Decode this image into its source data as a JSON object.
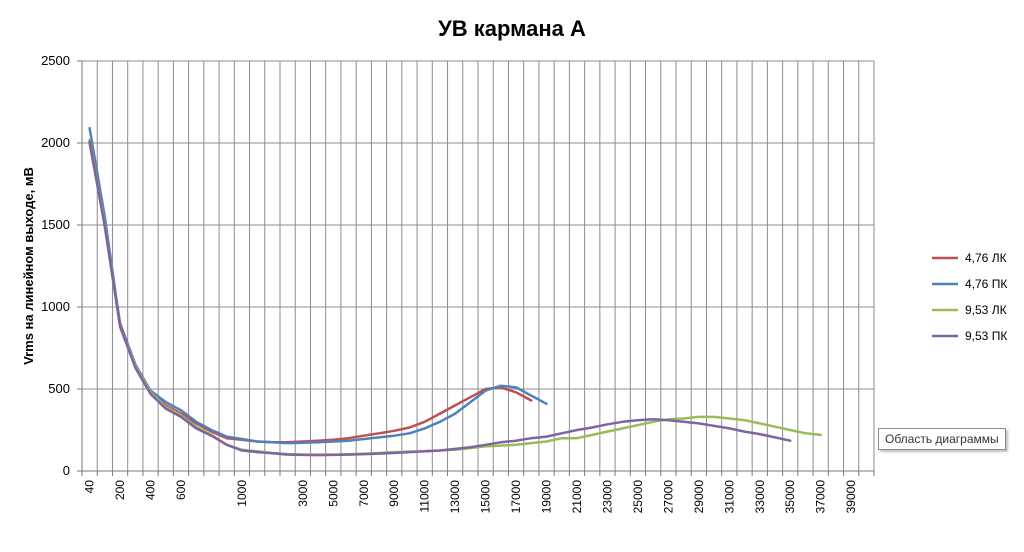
{
  "tooltip": "Область диаграммы",
  "chart_data": {
    "type": "line",
    "title": "УВ кармана А",
    "xlabel": "",
    "ylabel": "Vrms на линейном выходе, мВ",
    "ylim": [
      0,
      2500
    ],
    "y_ticks": [
      0,
      500,
      1000,
      1500,
      2000,
      2500
    ],
    "grid": true,
    "legend_position": "right",
    "x_tick_labels": [
      "40",
      "200",
      "400",
      "600",
      "1000",
      "3000",
      "5000",
      "7000",
      "9000",
      "11000",
      "13000",
      "15000",
      "17000",
      "19000",
      "21000",
      "23000",
      "25000",
      "27000",
      "29000",
      "31000",
      "33000",
      "35000",
      "37000",
      "39000"
    ],
    "x": [
      "40",
      "100",
      "200",
      "300",
      "400",
      "500",
      "600",
      "700",
      "800",
      "900",
      "1000",
      "1500",
      "2000",
      "2500",
      "3000",
      "4000",
      "5000",
      "6000",
      "7000",
      "8000",
      "9000",
      "10000",
      "11000",
      "12000",
      "13000",
      "14000",
      "15000",
      "16000",
      "17000",
      "18000",
      "19000",
      "20000",
      "21000",
      "22000",
      "23000",
      "24000",
      "25000",
      "26000",
      "27000",
      "28000",
      "29000",
      "30000",
      "31000",
      "32000",
      "33000",
      "34000",
      "35000",
      "36000",
      "37000",
      "38000",
      "39000",
      "40000"
    ],
    "series": [
      {
        "name": "4,76 ЛК",
        "color": "#c0504d",
        "values": [
          2000,
          1500,
          900,
          650,
          480,
          400,
          350,
          290,
          240,
          200,
          190,
          180,
          175,
          175,
          180,
          185,
          190,
          200,
          215,
          230,
          245,
          265,
          300,
          350,
          400,
          450,
          500,
          510,
          480,
          430,
          null,
          null,
          null,
          null,
          null,
          null,
          null,
          null,
          null,
          null,
          null,
          null,
          null,
          null,
          null,
          null,
          null,
          null,
          null,
          null,
          null,
          null
        ]
      },
      {
        "name": "4,76 ПК",
        "color": "#4f81bd",
        "values": [
          2090,
          1550,
          890,
          650,
          490,
          420,
          370,
          300,
          250,
          210,
          195,
          180,
          175,
          170,
          172,
          175,
          180,
          185,
          195,
          205,
          215,
          230,
          260,
          300,
          350,
          420,
          490,
          520,
          510,
          460,
          410,
          null,
          null,
          null,
          null,
          null,
          null,
          null,
          null,
          null,
          null,
          null,
          null,
          null,
          null,
          null,
          null,
          null,
          null,
          null,
          null,
          null
        ]
      },
      {
        "name": "9,53 ЛК",
        "color": "#9bbb59",
        "values": [
          2020,
          1500,
          880,
          640,
          480,
          390,
          340,
          270,
          220,
          160,
          130,
          120,
          110,
          103,
          100,
          100,
          100,
          102,
          105,
          110,
          115,
          118,
          120,
          125,
          130,
          140,
          150,
          155,
          160,
          170,
          180,
          200,
          200,
          220,
          240,
          260,
          280,
          300,
          315,
          320,
          330,
          330,
          320,
          310,
          290,
          270,
          250,
          230,
          220,
          null,
          null,
          null
        ]
      },
      {
        "name": "9,53 ПК",
        "color": "#8064a2",
        "values": [
          2010,
          1490,
          880,
          630,
          470,
          380,
          330,
          260,
          215,
          160,
          125,
          115,
          108,
          100,
          98,
          97,
          98,
          100,
          103,
          106,
          110,
          115,
          120,
          125,
          135,
          145,
          160,
          175,
          185,
          200,
          210,
          230,
          250,
          265,
          285,
          300,
          310,
          315,
          310,
          300,
          290,
          275,
          260,
          240,
          225,
          205,
          185,
          null,
          null,
          null,
          null,
          null
        ]
      }
    ]
  }
}
